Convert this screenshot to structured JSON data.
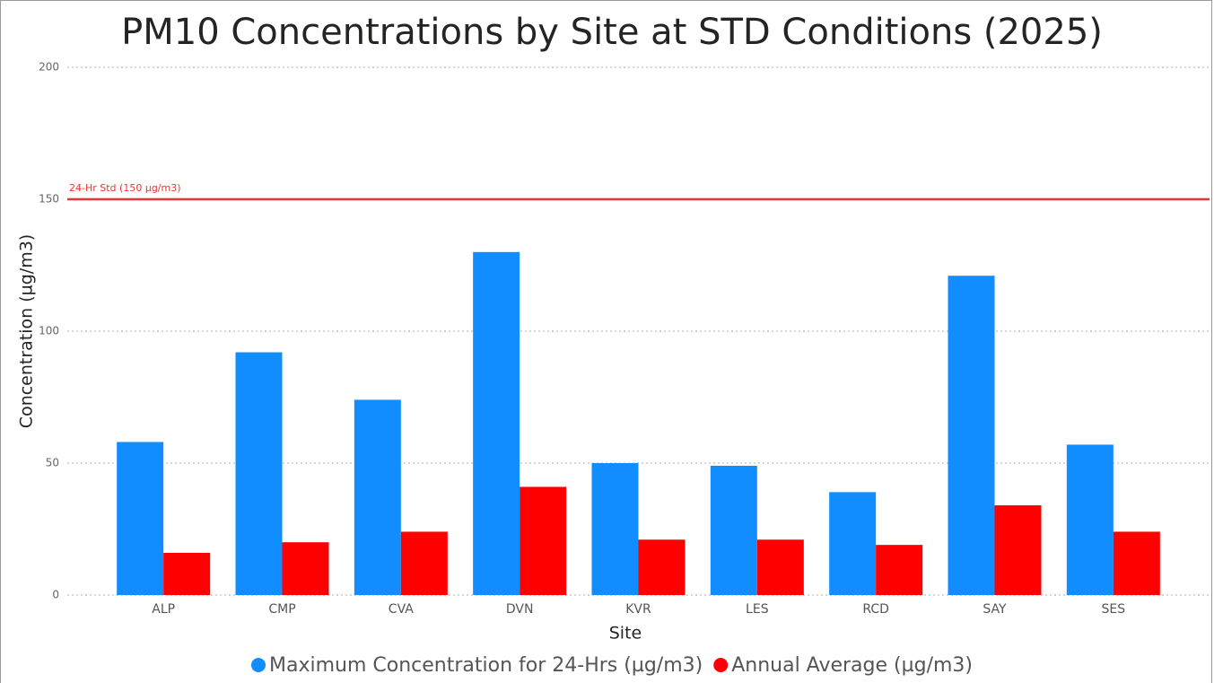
{
  "chart_data": {
    "type": "bar",
    "title": "PM10 Concentrations by Site at STD Conditions (2025)",
    "x_label": "Site",
    "y_label": "Concentration (µg/m3)",
    "categories": [
      "ALP",
      "CMP",
      "CVA",
      "DVN",
      "KVR",
      "LES",
      "RCD",
      "SAY",
      "SES"
    ],
    "series": [
      {
        "name": "Maximum Concentration for 24-Hrs (µg/m3)",
        "color": "#118dff",
        "values": [
          58,
          92,
          74,
          130,
          50,
          49,
          39,
          121,
          57
        ]
      },
      {
        "name": "Annual Average (µg/m3)",
        "color": "#ff0000",
        "values": [
          16,
          20,
          24,
          41,
          21,
          21,
          19,
          34,
          24
        ]
      }
    ],
    "reference_line": {
      "value": 150,
      "label": "24-Hr Std (150 µg/m3)",
      "color": "#ee3333"
    },
    "ylim": [
      0,
      200
    ],
    "yticks": [
      0,
      50,
      100,
      150,
      200
    ],
    "grid": true,
    "legend": "bottom"
  }
}
